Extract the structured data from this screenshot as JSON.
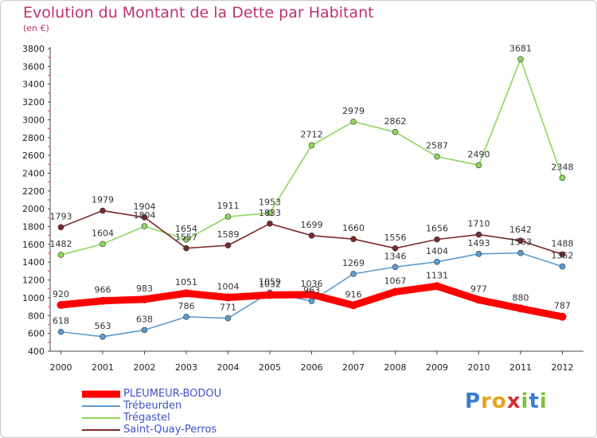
{
  "title": "Evolution du Montant de la Dette par Habitant",
  "unit_label": "(en €)",
  "logo": {
    "text": "Proxiti",
    "letter_colors": [
      "#3a7bd5",
      "#e8a21b",
      "#e8a21b",
      "#d32f2f",
      "#7cc242",
      "#3a7bd5",
      "#7cc242"
    ]
  },
  "chart_data": {
    "type": "line",
    "title": "Evolution du Montant de la Dette par Habitant",
    "ylabel": "(en €)",
    "xlabel": "",
    "x": [
      "2000",
      "2001",
      "2002",
      "2003",
      "2004",
      "2005",
      "2006",
      "2007",
      "2008",
      "2009",
      "2010",
      "2011",
      "2012"
    ],
    "ylim": [
      400,
      3800
    ],
    "yticks": [
      400,
      600,
      800,
      1000,
      1200,
      1400,
      1600,
      1800,
      2000,
      2200,
      2400,
      2600,
      2800,
      3000,
      3200,
      3400,
      3600,
      3800
    ],
    "grid": false,
    "legend_position": "bottom-left",
    "series": [
      {
        "name": "PLEUMEUR-BODOU",
        "color": "#ff0000",
        "values": [
          920,
          966,
          983,
          1051,
          1004,
          1032,
          1036,
          916,
          1067,
          1131,
          977,
          880,
          787
        ],
        "show_labels": true
      },
      {
        "name": "Trébeurden",
        "color": "#5c9bd1",
        "values": [
          618,
          563,
          638,
          786,
          771,
          1059,
          963,
          1269,
          1346,
          1404,
          1493,
          1503,
          1352
        ],
        "show_labels": true
      },
      {
        "name": "Trégastel",
        "color": "#8fd65b",
        "values": [
          1482,
          1604,
          1804,
          1654,
          1911,
          1953,
          2712,
          2979,
          2862,
          2587,
          2490,
          3681,
          2348
        ],
        "show_labels": true
      },
      {
        "name": "Saint-Quay-Perros",
        "color": "#7a2a2a",
        "values": [
          1793,
          1979,
          1904,
          1557,
          1589,
          1833,
          1699,
          1660,
          1556,
          1656,
          1710,
          1642,
          1488
        ],
        "show_labels": true
      }
    ]
  }
}
